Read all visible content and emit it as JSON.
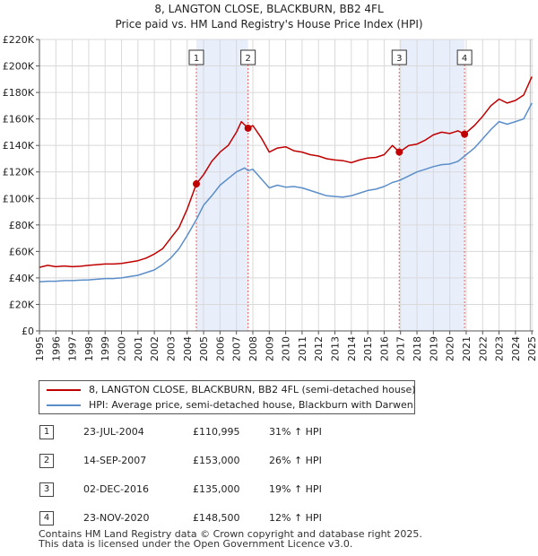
{
  "chart_data": {
    "type": "line",
    "title": "8, LANGTON CLOSE, BLACKBURN, BB2 4FL",
    "subtitle": "Price paid vs. HM Land Registry's House Price Index (HPI)",
    "xlabel": "",
    "ylabel": "",
    "xlim": [
      1995,
      2025.1
    ],
    "ylim": [
      0,
      220000
    ],
    "y_ticks": [
      0,
      20000,
      40000,
      60000,
      80000,
      100000,
      120000,
      140000,
      160000,
      180000,
      200000,
      220000
    ],
    "y_tick_labels": [
      "£0",
      "£20K",
      "£40K",
      "£60K",
      "£80K",
      "£100K",
      "£120K",
      "£140K",
      "£160K",
      "£180K",
      "£200K",
      "£220K"
    ],
    "x_ticks": [
      1995,
      1996,
      1997,
      1998,
      1999,
      2000,
      2001,
      2002,
      2003,
      2004,
      2005,
      2006,
      2007,
      2008,
      2009,
      2010,
      2011,
      2012,
      2013,
      2014,
      2015,
      2016,
      2017,
      2018,
      2019,
      2020,
      2021,
      2022,
      2023,
      2024,
      2025
    ],
    "x_tick_labels": [
      "1995",
      "1996",
      "1997",
      "1998",
      "1999",
      "2000",
      "2001",
      "2002",
      "2003",
      "2004",
      "2005",
      "2006",
      "2007",
      "2008",
      "2009",
      "2010",
      "2011",
      "2012",
      "2013",
      "2014",
      "2015",
      "2016",
      "2017",
      "2018",
      "2019",
      "2020",
      "2021",
      "2022",
      "2023",
      "2024",
      "2025"
    ],
    "grid": true,
    "shaded_periods": [
      [
        2004.56,
        2007.71
      ],
      [
        2016.92,
        2020.9
      ]
    ],
    "series": [
      {
        "name": "8, LANGTON CLOSE, BLACKBURN, BB2 4FL (semi-detached house)",
        "color": "#c00000",
        "x": [
          1995,
          1995.5,
          1996,
          1996.5,
          1997,
          1997.5,
          1998,
          1998.5,
          1999,
          1999.5,
          2000,
          2000.5,
          2001,
          2001.5,
          2002,
          2002.5,
          2003,
          2003.5,
          2004,
          2004.56,
          2005,
          2005.5,
          2006,
          2006.5,
          2007,
          2007.3,
          2007.71,
          2008,
          2008.5,
          2009,
          2009.5,
          2010,
          2010.5,
          2011,
          2011.5,
          2012,
          2012.5,
          2013,
          2013.5,
          2014,
          2014.5,
          2015,
          2015.5,
          2016,
          2016.5,
          2016.92,
          2017.5,
          2018,
          2018.5,
          2019,
          2019.5,
          2020,
          2020.5,
          2020.9,
          2021.5,
          2022,
          2022.5,
          2023,
          2023.5,
          2024,
          2024.5,
          2025
        ],
        "y": [
          48000,
          49500,
          48500,
          49000,
          48500,
          48800,
          49500,
          50000,
          50500,
          50500,
          51000,
          52000,
          53000,
          55000,
          58000,
          62000,
          70000,
          78000,
          92000,
          110995,
          118000,
          128000,
          135000,
          140000,
          150000,
          158000,
          153000,
          155000,
          146000,
          135000,
          138000,
          139000,
          136000,
          135000,
          133000,
          132000,
          130000,
          129000,
          128500,
          127000,
          129000,
          130500,
          131000,
          133000,
          140000,
          135000,
          140000,
          141000,
          144000,
          148000,
          150000,
          149000,
          151000,
          148500,
          155000,
          162000,
          170000,
          175000,
          172000,
          174000,
          178000,
          192000
        ]
      },
      {
        "name": "HPI: Average price, semi-detached house, Blackburn with Darwen",
        "color": "#5b8ec9",
        "x": [
          1995,
          1995.5,
          1996,
          1996.5,
          1997,
          1997.5,
          1998,
          1998.5,
          1999,
          1999.5,
          2000,
          2000.5,
          2001,
          2001.5,
          2002,
          2002.5,
          2003,
          2003.5,
          2004,
          2004.56,
          2005,
          2005.5,
          2006,
          2006.5,
          2007,
          2007.5,
          2007.71,
          2008,
          2008.5,
          2009,
          2009.5,
          2010,
          2010.5,
          2011,
          2011.5,
          2012,
          2012.5,
          2013,
          2013.5,
          2014,
          2014.5,
          2015,
          2015.5,
          2016,
          2016.5,
          2016.92,
          2017.5,
          2018,
          2018.5,
          2019,
          2019.5,
          2020,
          2020.5,
          2020.9,
          2021.5,
          2022,
          2022.5,
          2023,
          2023.5,
          2024,
          2024.5,
          2025
        ],
        "y": [
          37000,
          37500,
          37500,
          38000,
          38000,
          38300,
          38500,
          39000,
          39500,
          39500,
          40000,
          41000,
          42000,
          44000,
          46000,
          50000,
          55000,
          62000,
          72000,
          84000,
          95000,
          102000,
          110000,
          115000,
          120000,
          123000,
          121000,
          122000,
          115000,
          108000,
          110000,
          108500,
          109000,
          108000,
          106000,
          104000,
          102000,
          101500,
          101000,
          102000,
          104000,
          106000,
          107000,
          109000,
          112000,
          113500,
          117000,
          120000,
          122000,
          124000,
          125500,
          126000,
          128000,
          132000,
          138000,
          145000,
          152000,
          158000,
          156000,
          158000,
          160000,
          172000
        ]
      }
    ],
    "markers": [
      {
        "id": "1",
        "x": 2004.56,
        "y": 110995
      },
      {
        "id": "2",
        "x": 2007.71,
        "y": 153000
      },
      {
        "id": "3",
        "x": 2016.92,
        "y": 135000
      },
      {
        "id": "4",
        "x": 2020.9,
        "y": 148500
      }
    ]
  },
  "legend": {
    "property_label": "8, LANGTON CLOSE, BLACKBURN, BB2 4FL (semi-detached house)",
    "hpi_label": "HPI: Average price, semi-detached house, Blackburn with Darwen",
    "property_color": "#c00000",
    "hpi_color": "#5b8ec9"
  },
  "sales": [
    {
      "num": "1",
      "date": "23-JUL-2004",
      "price": "£110,995",
      "hpi": "31% ↑ HPI"
    },
    {
      "num": "2",
      "date": "14-SEP-2007",
      "price": "£153,000",
      "hpi": "26% ↑ HPI"
    },
    {
      "num": "3",
      "date": "02-DEC-2016",
      "price": "£135,000",
      "hpi": "19% ↑ HPI"
    },
    {
      "num": "4",
      "date": "23-NOV-2020",
      "price": "£148,500",
      "hpi": "12% ↑ HPI"
    }
  ],
  "footer": {
    "line1": "Contains HM Land Registry data © Crown copyright and database right 2025.",
    "line2": "This data is licensed under the Open Government Licence v3.0."
  }
}
